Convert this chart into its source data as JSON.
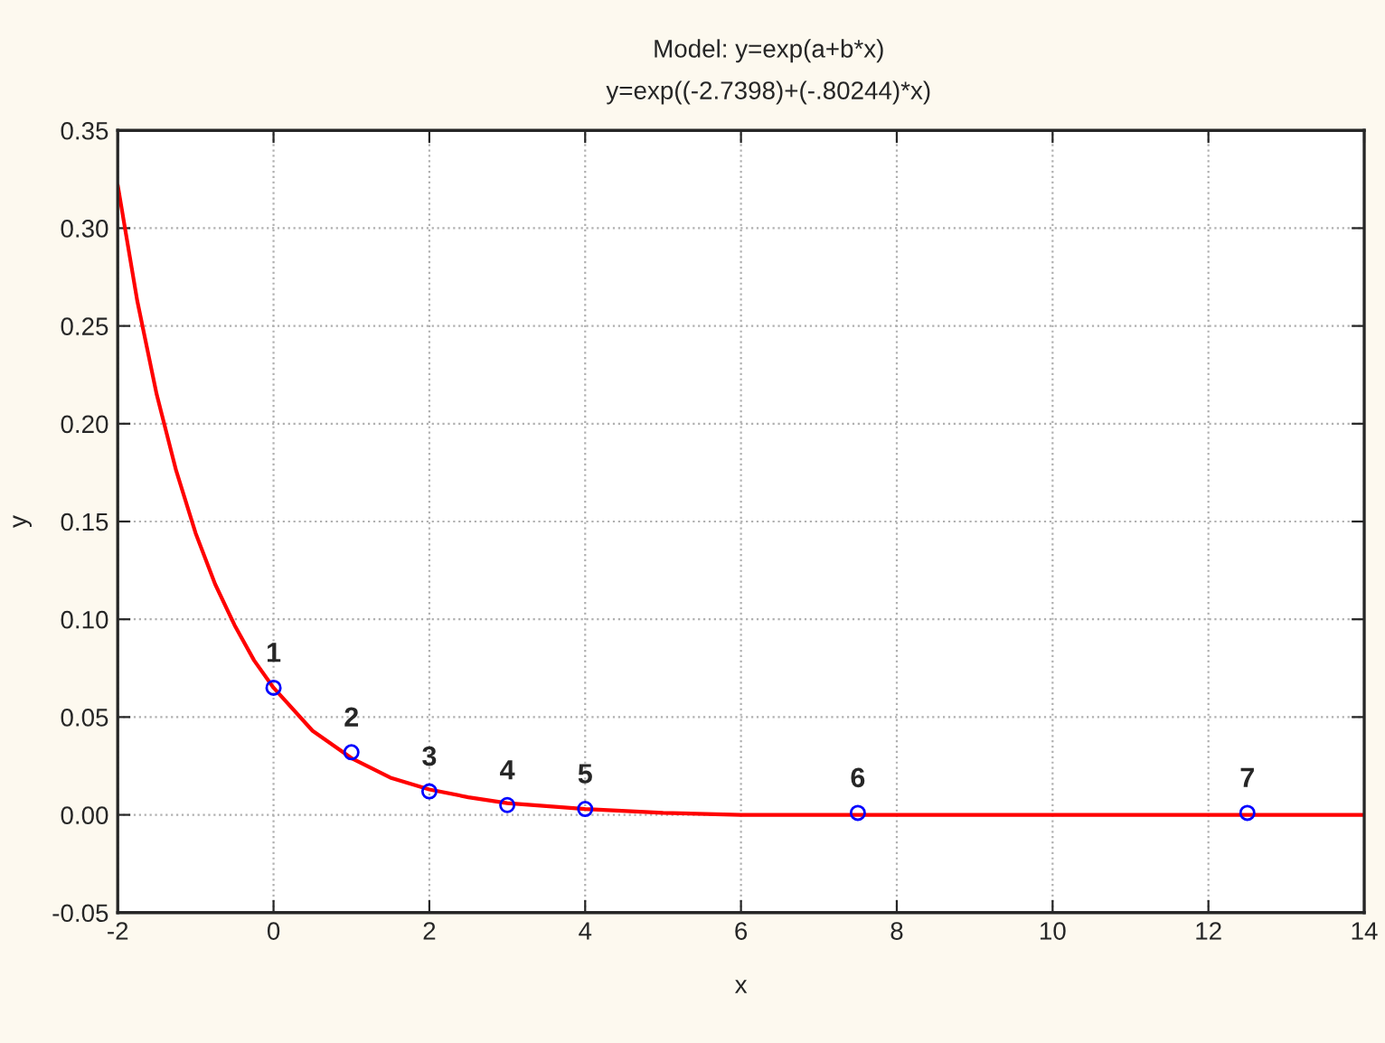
{
  "chart_data": {
    "type": "scatter",
    "title": "Model: y=exp(a+b*x)",
    "subtitle": "y=exp((-2.7398)+(-.80244)*x)",
    "xlabel": "x",
    "ylabel": "y",
    "series": [
      {
        "color": "#0000ff",
        "marker": "circle",
        "x": [
          0,
          1,
          2,
          3,
          4,
          7.5,
          12.5
        ],
        "values": [
          0.065,
          0.032,
          0.012,
          0.005,
          0.003,
          0.001,
          0.001
        ]
      },
      {
        "type": "line",
        "color": "#ff0000",
        "marker": "none",
        "x": [
          -2,
          -1.75,
          -1.5,
          -1.25,
          -1,
          -0.75,
          -0.5,
          -0.25,
          0,
          0.5,
          1,
          1.5,
          2,
          2.5,
          3,
          4,
          5,
          6,
          8,
          10,
          14
        ],
        "values": [
          0.322,
          0.263,
          0.215,
          0.176,
          0.144,
          0.118,
          0.097,
          0.079,
          0.065,
          0.043,
          0.029,
          0.019,
          0.013,
          0.009,
          0.006,
          0.003,
          0.001,
          0.0,
          0.0,
          0.0,
          0.0
        ]
      }
    ],
    "annotations": [
      {
        "text": "1",
        "x": 0,
        "y": 0.065
      },
      {
        "text": "2",
        "x": 1,
        "y": 0.032
      },
      {
        "text": "3",
        "x": 2,
        "y": 0.012
      },
      {
        "text": "4",
        "x": 3,
        "y": 0.005
      },
      {
        "text": "5",
        "x": 4,
        "y": 0.003
      },
      {
        "text": "6",
        "x": 7.5,
        "y": 0.001
      },
      {
        "text": "7",
        "x": 12.5,
        "y": 0.001
      }
    ],
    "xlim": [
      -2,
      14
    ],
    "xticks": [
      -2,
      0,
      2,
      4,
      6,
      8,
      10,
      12,
      14
    ],
    "ylim": [
      -0.05,
      0.35
    ],
    "yticks": [
      {
        "value": -0.05,
        "label": "-0.05"
      },
      {
        "value": 0,
        "label": "0.00"
      },
      {
        "value": 0.05,
        "label": "0.05"
      },
      {
        "value": 0.1,
        "label": "0.10"
      },
      {
        "value": 0.15,
        "label": "0.15"
      },
      {
        "value": 0.2,
        "label": "0.20"
      },
      {
        "value": 0.25,
        "label": "0.25"
      },
      {
        "value": 0.3,
        "label": "0.30"
      },
      {
        "value": 0.35,
        "label": "0.35"
      }
    ],
    "grid": true,
    "legend": false
  }
}
